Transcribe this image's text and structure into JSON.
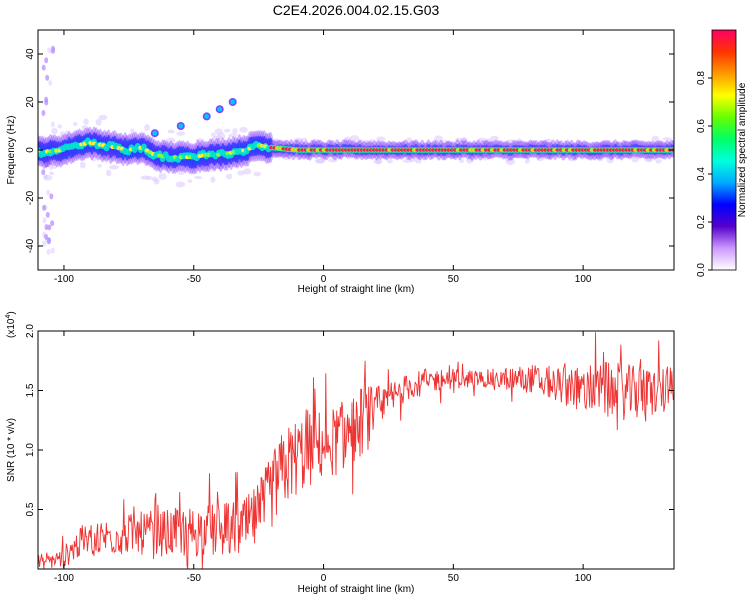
{
  "figure_title": "C2E4.2026.004.02.15.G03",
  "chart_data": [
    {
      "type": "heatmap",
      "title": "C2E4.2026.004.02.15.G03",
      "xlabel": "Height of straight line (km)",
      "ylabel": "Frequency (Hz)",
      "xlim": [
        -110,
        135
      ],
      "ylim": [
        -50,
        50
      ],
      "xticks": [
        -100,
        -50,
        0,
        50,
        100
      ],
      "yticks": [
        -40,
        -20,
        0,
        20,
        40
      ],
      "ridge_frequency_hz": [
        {
          "x": -110,
          "y": -1
        },
        {
          "x": -100,
          "y": 0
        },
        {
          "x": -95,
          "y": 2
        },
        {
          "x": -90,
          "y": 3
        },
        {
          "x": -85,
          "y": 2
        },
        {
          "x": -80,
          "y": 1
        },
        {
          "x": -75,
          "y": 0
        },
        {
          "x": -70,
          "y": 1
        },
        {
          "x": -65,
          "y": -2
        },
        {
          "x": -60,
          "y": -3
        },
        {
          "x": -55,
          "y": -3
        },
        {
          "x": -50,
          "y": -3
        },
        {
          "x": -45,
          "y": -2
        },
        {
          "x": -40,
          "y": -2
        },
        {
          "x": -35,
          "y": -1
        },
        {
          "x": -30,
          "y": 0
        },
        {
          "x": -25,
          "y": 2
        },
        {
          "x": -20,
          "y": 1
        },
        {
          "x": -10,
          "y": 0
        },
        {
          "x": 0,
          "y": 0
        },
        {
          "x": 50,
          "y": 0
        },
        {
          "x": 100,
          "y": 0
        },
        {
          "x": 135,
          "y": 0
        }
      ],
      "spurs_hz": [
        {
          "x": -35,
          "y": 20
        },
        {
          "x": -40,
          "y": 17
        },
        {
          "x": -45,
          "y": 14
        },
        {
          "x": -55,
          "y": 10
        },
        {
          "x": -65,
          "y": 7
        }
      ],
      "colorbar": {
        "label": "Normalized spectral amplitude",
        "range": [
          0,
          1
        ],
        "ticks": [
          0.0,
          0.2,
          0.4,
          0.6,
          0.8
        ],
        "colors": [
          "#ffffff",
          "#cc99ff",
          "#5500cc",
          "#0000ff",
          "#00aaff",
          "#00ffdd",
          "#00ff66",
          "#66ff00",
          "#ffff00",
          "#ff9900",
          "#ff3300",
          "#ff0066"
        ]
      }
    },
    {
      "type": "line",
      "xlabel": "Height of straight line (km)",
      "ylabel": "SNR (10 * v/v)",
      "y_exponent": "(x10",
      "y_exponent_power": "4",
      "y_exponent_close": ")",
      "xlim": [
        -110,
        135
      ],
      "ylim": [
        0,
        2.0
      ],
      "xticks": [
        -100,
        -50,
        0,
        50,
        100
      ],
      "yticks": [
        0.5,
        1.0,
        1.5,
        2.0
      ],
      "series": [
        {
          "color": "#ee3333",
          "trend": [
            {
              "x": -110,
              "y": 0.04
            },
            {
              "x": -100,
              "y": 0.1
            },
            {
              "x": -95,
              "y": 0.2
            },
            {
              "x": -90,
              "y": 0.25
            },
            {
              "x": -80,
              "y": 0.28
            },
            {
              "x": -70,
              "y": 0.3
            },
            {
              "x": -60,
              "y": 0.3
            },
            {
              "x": -50,
              "y": 0.32
            },
            {
              "x": -40,
              "y": 0.32
            },
            {
              "x": -30,
              "y": 0.35
            },
            {
              "x": -25,
              "y": 0.45
            },
            {
              "x": -20,
              "y": 0.65
            },
            {
              "x": -15,
              "y": 0.85
            },
            {
              "x": -10,
              "y": 0.95
            },
            {
              "x": -5,
              "y": 1.0
            },
            {
              "x": 0,
              "y": 1.05
            },
            {
              "x": 5,
              "y": 1.08
            },
            {
              "x": 10,
              "y": 1.15
            },
            {
              "x": 15,
              "y": 1.25
            },
            {
              "x": 20,
              "y": 1.3
            },
            {
              "x": 25,
              "y": 1.4
            },
            {
              "x": 30,
              "y": 1.5
            },
            {
              "x": 35,
              "y": 1.55
            },
            {
              "x": 40,
              "y": 1.58
            },
            {
              "x": 50,
              "y": 1.6
            },
            {
              "x": 60,
              "y": 1.6
            },
            {
              "x": 70,
              "y": 1.6
            },
            {
              "x": 80,
              "y": 1.6
            },
            {
              "x": 90,
              "y": 1.55
            },
            {
              "x": 100,
              "y": 1.52
            },
            {
              "x": 110,
              "y": 1.5
            },
            {
              "x": 120,
              "y": 1.48
            },
            {
              "x": 135,
              "y": 1.5
            }
          ],
          "noise_amplitude": [
            {
              "x": -110,
              "y": 0.04
            },
            {
              "x": -90,
              "y": 0.15
            },
            {
              "x": -50,
              "y": 0.22
            },
            {
              "x": -30,
              "y": 0.25
            },
            {
              "x": -15,
              "y": 0.35
            },
            {
              "x": 0,
              "y": 0.3
            },
            {
              "x": 15,
              "y": 0.3
            },
            {
              "x": 30,
              "y": 0.12
            },
            {
              "x": 60,
              "y": 0.07
            },
            {
              "x": 90,
              "y": 0.15
            },
            {
              "x": 110,
              "y": 0.25
            },
            {
              "x": 135,
              "y": 0.2
            }
          ]
        }
      ]
    }
  ]
}
